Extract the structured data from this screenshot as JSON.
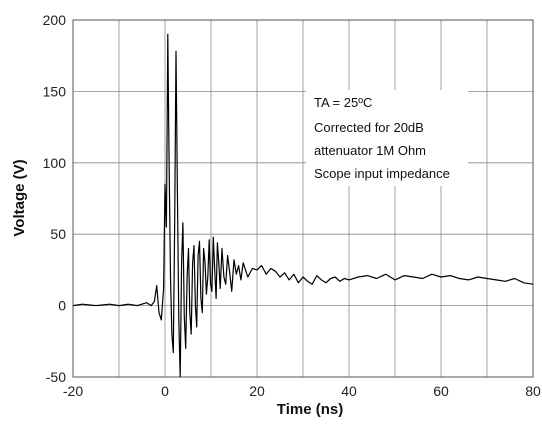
{
  "chart_data": {
    "type": "line",
    "title": "",
    "xlabel": "Time  (ns)",
    "ylabel": "Voltage (V)",
    "xlim": [
      -20,
      80
    ],
    "ylim": [
      -50,
      200
    ],
    "xticks": [
      -20,
      0,
      20,
      40,
      60,
      80
    ],
    "yticks": [
      -50,
      0,
      50,
      100,
      150,
      200
    ],
    "grid": true,
    "annotation": {
      "lines": [
        "TA = 25ºC",
        "Corrected for 20dB",
        "attenuator 1M Ohm",
        "Scope input impedance"
      ]
    },
    "series": [
      {
        "color": "#000000",
        "x": [
          -20,
          -18,
          -15,
          -12,
          -10,
          -8,
          -6,
          -4,
          -3,
          -2.3,
          -1.8,
          -1.3,
          -0.8,
          -0.3,
          0.0,
          0.3,
          0.6,
          0.9,
          1.2,
          1.5,
          1.8,
          2.1,
          2.4,
          2.7,
          3.0,
          3.3,
          3.6,
          3.9,
          4.2,
          4.5,
          4.8,
          5.1,
          5.4,
          5.7,
          6.0,
          6.3,
          6.6,
          6.9,
          7.2,
          7.5,
          7.8,
          8.1,
          8.4,
          8.7,
          9.0,
          9.3,
          9.6,
          9.9,
          10.2,
          10.5,
          10.8,
          11.1,
          11.4,
          11.7,
          12.0,
          12.4,
          12.8,
          13.2,
          13.6,
          14.0,
          14.5,
          15.0,
          15.5,
          16.0,
          16.5,
          17.0,
          18.0,
          19.0,
          20.0,
          21.0,
          22.0,
          23.0,
          24.0,
          25.0,
          26.0,
          27.0,
          28.0,
          29.0,
          30.0,
          31.0,
          32.0,
          33.0,
          34.0,
          35.0,
          36.0,
          37.0,
          38.0,
          39.0,
          40.0,
          42.0,
          44.0,
          46.0,
          48.0,
          50.0,
          52.0,
          54.0,
          56.0,
          58.0,
          60.0,
          62.0,
          64.0,
          66.0,
          68.0,
          70.0,
          72.0,
          74.0,
          76.0,
          78.0,
          80.0
        ],
        "y": [
          0,
          1,
          0,
          1,
          0,
          1,
          0,
          2,
          0,
          3,
          14,
          -5,
          -10,
          12,
          85,
          55,
          190,
          100,
          20,
          -20,
          -33,
          60,
          178,
          80,
          -10,
          -50,
          30,
          58,
          -8,
          -30,
          20,
          40,
          -5,
          -20,
          30,
          42,
          0,
          -15,
          35,
          45,
          5,
          -5,
          40,
          30,
          8,
          20,
          46,
          15,
          10,
          48,
          25,
          5,
          44,
          30,
          12,
          40,
          20,
          15,
          35,
          25,
          10,
          32,
          22,
          28,
          18,
          30,
          20,
          26,
          25,
          28,
          22,
          26,
          24,
          20,
          23,
          18,
          22,
          16,
          20,
          17,
          15,
          21,
          18,
          16,
          19,
          20,
          17,
          19,
          18,
          20,
          21,
          19,
          22,
          18,
          21,
          20,
          19,
          22,
          20,
          21,
          19,
          18,
          20,
          19,
          18,
          17,
          19,
          16,
          15
        ]
      }
    ]
  }
}
